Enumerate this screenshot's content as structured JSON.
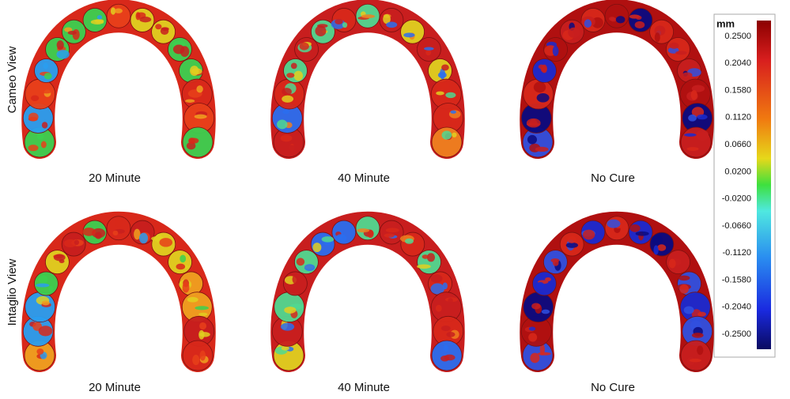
{
  "rows": [
    {
      "label": "Cameo View",
      "panels": [
        "20 Minute",
        "40 Minute",
        "No Cure"
      ]
    },
    {
      "label": "Intaglio View",
      "panels": [
        "20 Minute",
        "40 Minute",
        "No Cure"
      ]
    }
  ],
  "colorbar": {
    "unit": "mm",
    "ticks": [
      "0.2500",
      "0.2040",
      "0.1580",
      "0.1120",
      "0.0660",
      "0.0200",
      "-0.0200",
      "-0.0660",
      "-0.1120",
      "-0.1580",
      "-0.2040",
      "-0.2500"
    ]
  }
}
